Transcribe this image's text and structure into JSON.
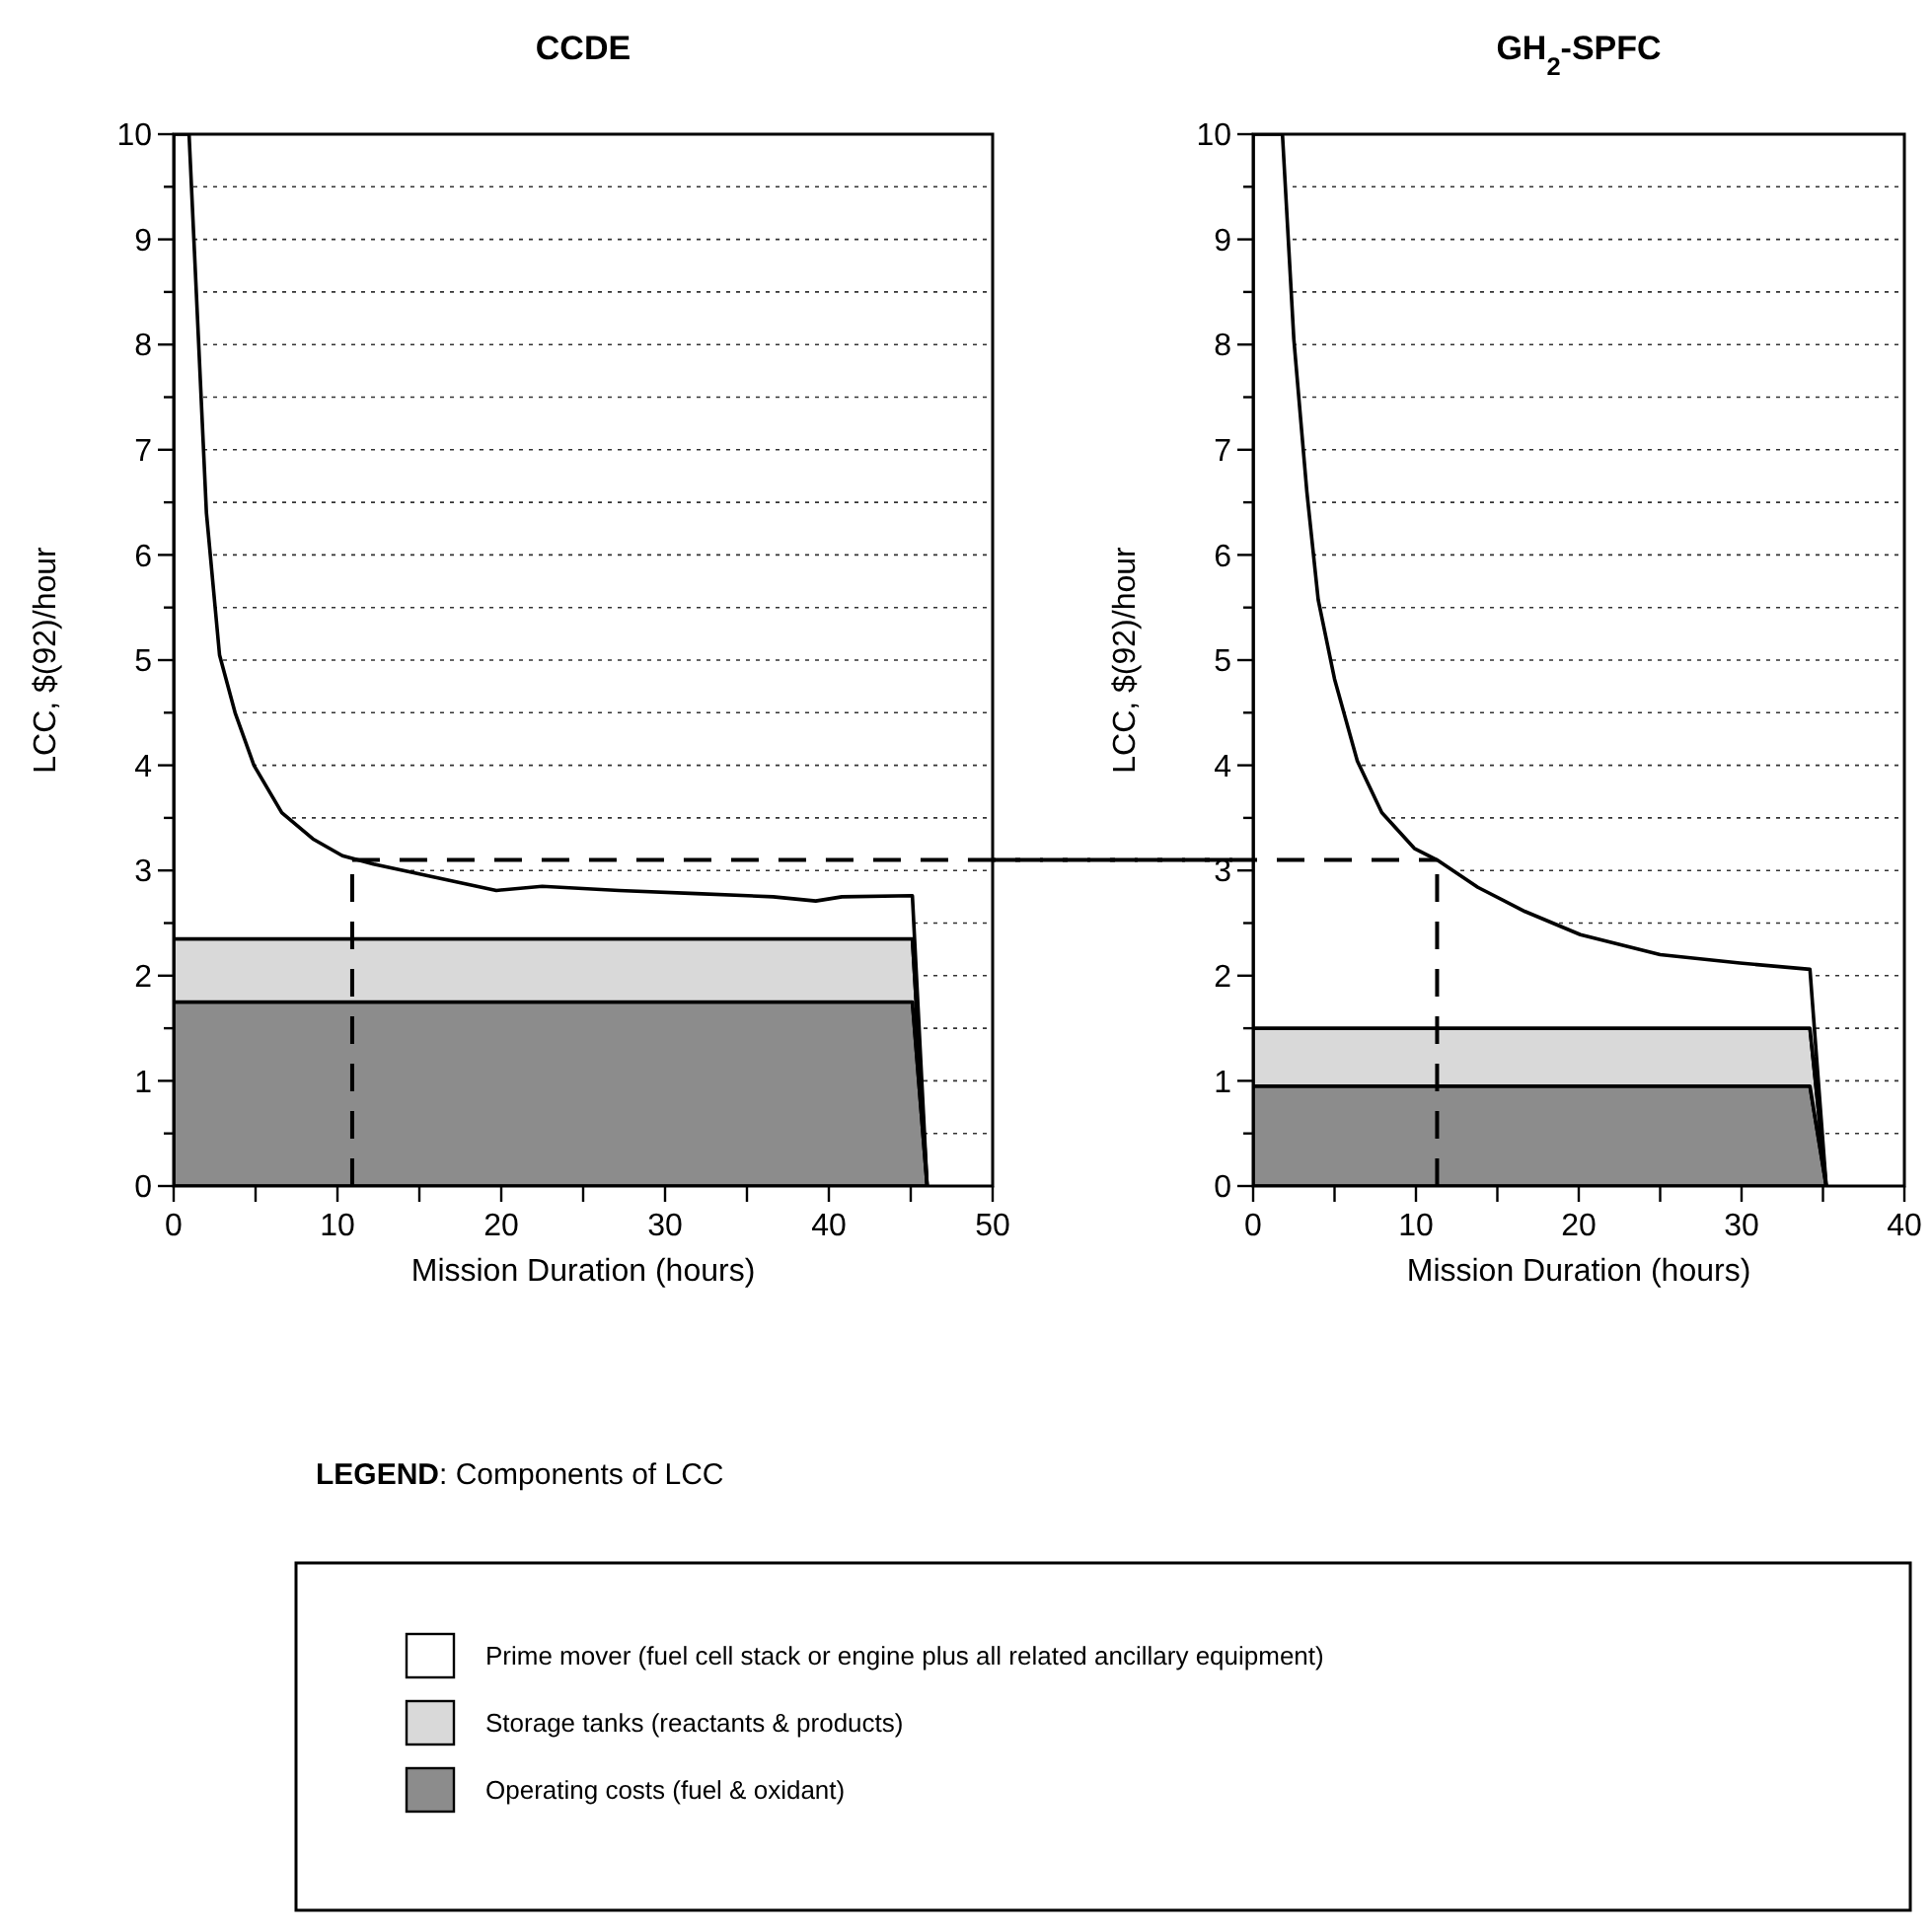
{
  "chart_data": [
    {
      "type": "area",
      "stacked": true,
      "title": "CCDE",
      "xlabel": "Mission Duration (hours)",
      "ylabel": "LCC, $(92)/hour",
      "legend": "bottom",
      "legend_title": "LEGEND: Components of LCC",
      "grid": "y",
      "xlim": [
        0,
        50
      ],
      "ylim": [
        0,
        10
      ],
      "xticks": [
        0,
        {
          "value": 5,
          "label": null
        },
        10,
        {
          "value": 15,
          "label": null
        },
        20,
        {
          "value": 25,
          "label": null
        },
        30,
        {
          "value": 35,
          "label": null
        },
        40,
        {
          "value": 45,
          "label": null
        },
        50
      ],
      "yticks": [
        0,
        {
          "value": 0.5,
          "label": null
        },
        1,
        {
          "value": 1.5,
          "label": null
        },
        2,
        {
          "value": 2.5,
          "label": null
        },
        3,
        {
          "value": 3.5,
          "label": null
        },
        4,
        {
          "value": 4.5,
          "label": null
        },
        5,
        {
          "value": 5.5,
          "label": null
        },
        6,
        {
          "value": 6.5,
          "label": null
        },
        7,
        {
          "value": 7.5,
          "label": null
        },
        8,
        {
          "value": 8.5,
          "label": null
        },
        9,
        {
          "value": 9.5,
          "label": null
        },
        10
      ],
      "x": [
        0,
        0.94,
        2.0,
        2.8,
        3.75,
        4.9,
        6.6,
        8.5,
        10.3,
        12.2,
        15.5,
        19.7,
        22.5,
        27.2,
        31.9,
        36.6,
        39.2,
        40.8,
        45.1,
        46.0
      ],
      "series": [
        {
          "name": "Operating costs (fuel & oxidant)",
          "color": "#8c8c8c",
          "values": [
            1.75,
            1.75,
            1.75,
            1.75,
            1.75,
            1.75,
            1.75,
            1.75,
            1.75,
            1.75,
            1.75,
            1.75,
            1.75,
            1.75,
            1.75,
            1.75,
            1.75,
            1.75,
            1.75,
            0
          ]
        },
        {
          "name": "Storage tanks (reactants & products)",
          "color": "#d9d9d9",
          "values": [
            0.6,
            0.6,
            0.6,
            0.6,
            0.6,
            0.6,
            0.6,
            0.6,
            0.6,
            0.6,
            0.6,
            0.6,
            0.6,
            0.6,
            0.6,
            0.6,
            0.6,
            0.6,
            0.6,
            0
          ]
        },
        {
          "name": "Prime mover (fuel cell stack or engine plus all related ancillary equipment)",
          "color": "#ffffff",
          "values": [
            7.65,
            7.65,
            4.05,
            2.7,
            2.15,
            1.65,
            1.2,
            0.95,
            0.79,
            0.71,
            0.6,
            0.46,
            0.5,
            0.46,
            0.43,
            0.4,
            0.36,
            0.4,
            0.41,
            0
          ]
        }
      ],
      "ref_lines": [
        {
          "axis": "y",
          "value": 3.1,
          "line_style": "dashed"
        },
        {
          "axis": "x",
          "value": 10.9,
          "line_style": "dashed"
        }
      ]
    },
    {
      "type": "area",
      "stacked": true,
      "title": "GH$_{2}$-SPFC",
      "xlabel": "Mission Duration (hours)",
      "ylabel": "LCC, $(92)/hour",
      "grid": "y",
      "xlim": [
        0,
        40
      ],
      "ylim": [
        0,
        10
      ],
      "xticks": [
        0,
        {
          "value": 5,
          "label": null
        },
        10,
        {
          "value": 15,
          "label": null
        },
        20,
        {
          "value": 25,
          "label": null
        },
        30,
        {
          "value": 35,
          "label": null
        },
        40
      ],
      "yticks": [
        0,
        {
          "value": 0.5,
          "label": null
        },
        1,
        {
          "value": 1.5,
          "label": null
        },
        2,
        {
          "value": 2.5,
          "label": null
        },
        3,
        {
          "value": 3.5,
          "label": null
        },
        4,
        {
          "value": 4.5,
          "label": null
        },
        5,
        {
          "value": 5.5,
          "label": null
        },
        6,
        {
          "value": 6.5,
          "label": null
        },
        7,
        {
          "value": 7.5,
          "label": null
        },
        8,
        {
          "value": 8.5,
          "label": null
        },
        9,
        {
          "value": 9.5,
          "label": null
        },
        10
      ],
      "x": [
        0,
        1.8,
        2.5,
        3.3,
        4.0,
        5.0,
        6.4,
        7.9,
        9.9,
        11.3,
        13.8,
        16.7,
        20.1,
        25.0,
        29.9,
        34.2,
        35.2
      ],
      "series": [
        {
          "color": "#8c8c8c",
          "values": [
            0.95,
            0.95,
            0.95,
            0.95,
            0.95,
            0.95,
            0.95,
            0.95,
            0.95,
            0.95,
            0.95,
            0.95,
            0.95,
            0.95,
            0.95,
            0.95,
            0
          ]
        },
        {
          "color": "#d9d9d9",
          "values": [
            0.55,
            0.55,
            0.55,
            0.55,
            0.55,
            0.55,
            0.55,
            0.55,
            0.55,
            0.55,
            0.55,
            0.55,
            0.55,
            0.55,
            0.55,
            0.55,
            0
          ]
        },
        {
          "color": "#ffffff",
          "values": [
            8.5,
            8.5,
            6.55,
            5.1,
            4.07,
            3.32,
            2.54,
            2.05,
            1.71,
            1.6,
            1.34,
            1.11,
            0.89,
            0.7,
            0.62,
            0.56,
            0
          ]
        }
      ],
      "ref_lines": [
        {
          "axis": "y",
          "value": 3.1,
          "line_style": "dashed"
        },
        {
          "axis": "x",
          "value": 11.3,
          "line_style": "dashed"
        }
      ]
    }
  ]
}
